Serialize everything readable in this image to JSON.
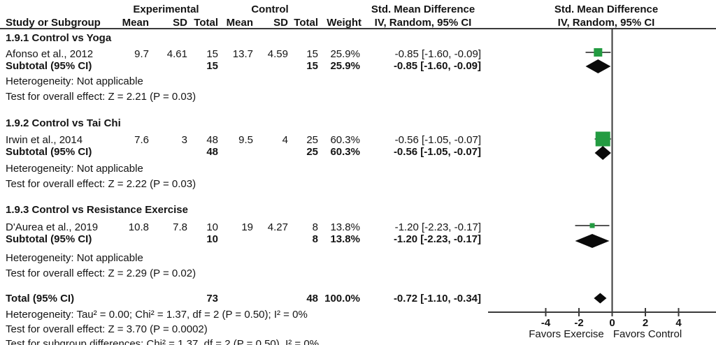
{
  "chart_data": {
    "type": "forest",
    "group_columns": {
      "experimental": "Experimental",
      "control": "Control"
    },
    "header": {
      "study": "Study or Subgroup",
      "mean": "Mean",
      "sd": "SD",
      "total": "Total",
      "weight": "Weight",
      "effect": "Std. Mean Difference",
      "method": "IV, Random, 95% CI"
    },
    "axis": {
      "tick_values": [
        -4,
        -2,
        0,
        2,
        4
      ],
      "tick_labels": [
        "-4",
        "-2",
        "0",
        "2",
        "4"
      ],
      "favors_left": "Favors Exercise",
      "favors_right": "Favors Control",
      "xlim_note": "effect size scale, 0 = no effect"
    },
    "subgroups": [
      {
        "label": "1.9.1 Control vs Yoga",
        "studies": [
          {
            "name": "Afonso et al., 2012",
            "mean_e": "9.7",
            "sd_e": "4.61",
            "total_e": "15",
            "mean_c": "13.7",
            "sd_c": "4.59",
            "total_c": "15",
            "weight": "25.9%",
            "ci_text": "-0.85 [-1.60, -0.09]",
            "est": -0.85,
            "lo": -1.6,
            "hi": -0.09
          }
        ],
        "subtotal": {
          "label": "Subtotal (95% CI)",
          "total_e": "15",
          "total_c": "15",
          "weight": "25.9%",
          "ci_text": "-0.85 [-1.60, -0.09]",
          "est": -0.85,
          "lo": -1.6,
          "hi": -0.09
        },
        "heterogeneity": "Heterogeneity: Not applicable",
        "overall_test": "Test for overall effect: Z = 2.21 (P = 0.03)"
      },
      {
        "label": "1.9.2 Control vs Tai Chi",
        "studies": [
          {
            "name": "Irwin et al., 2014",
            "mean_e": "7.6",
            "sd_e": "3",
            "total_e": "48",
            "mean_c": "9.5",
            "sd_c": "4",
            "total_c": "25",
            "weight": "60.3%",
            "ci_text": "-0.56 [-1.05, -0.07]",
            "est": -0.56,
            "lo": -1.05,
            "hi": -0.07
          }
        ],
        "subtotal": {
          "label": "Subtotal (95% CI)",
          "total_e": "48",
          "total_c": "25",
          "weight": "60.3%",
          "ci_text": "-0.56 [-1.05, -0.07]",
          "est": -0.56,
          "lo": -1.05,
          "hi": -0.07
        },
        "heterogeneity": "Heterogeneity: Not applicable",
        "overall_test": "Test for overall effect: Z = 2.22 (P = 0.03)"
      },
      {
        "label": "1.9.3 Control vs Resistance Exercise",
        "studies": [
          {
            "name": "D'Aurea et al., 2019",
            "mean_e": "10.8",
            "sd_e": "7.8",
            "total_e": "10",
            "mean_c": "19",
            "sd_c": "4.27",
            "total_c": "8",
            "weight": "13.8%",
            "ci_text": "-1.20 [-2.23, -0.17]",
            "est": -1.2,
            "lo": -2.23,
            "hi": -0.17
          }
        ],
        "subtotal": {
          "label": "Subtotal (95% CI)",
          "total_e": "10",
          "total_c": "8",
          "weight": "13.8%",
          "ci_text": "-1.20 [-2.23, -0.17]",
          "est": -1.2,
          "lo": -2.23,
          "hi": -0.17
        },
        "heterogeneity": "Heterogeneity: Not applicable",
        "overall_test": "Test for overall effect: Z = 2.29 (P = 0.02)"
      }
    ],
    "total": {
      "label": "Total (95% CI)",
      "total_e": "73",
      "total_c": "48",
      "weight": "100.0%",
      "ci_text": "-0.72 [-1.10, -0.34]",
      "est": -0.72,
      "lo": -1.1,
      "hi": -0.34
    },
    "footnotes": [
      "Heterogeneity: Tau² = 0.00; Chi² = 1.37, df = 2 (P = 0.50); I² = 0%",
      "Test for overall effect: Z = 3.70 (P = 0.0002)",
      "Test for subgroup differences: Chi² = 1.37, df = 2 (P = 0.50), I² = 0%"
    ]
  },
  "colors": {
    "square": "#239b41",
    "diamond": "#0a0a0a",
    "ci_line": "#555555",
    "rule": "#3a3a3a",
    "text": "#141414"
  }
}
